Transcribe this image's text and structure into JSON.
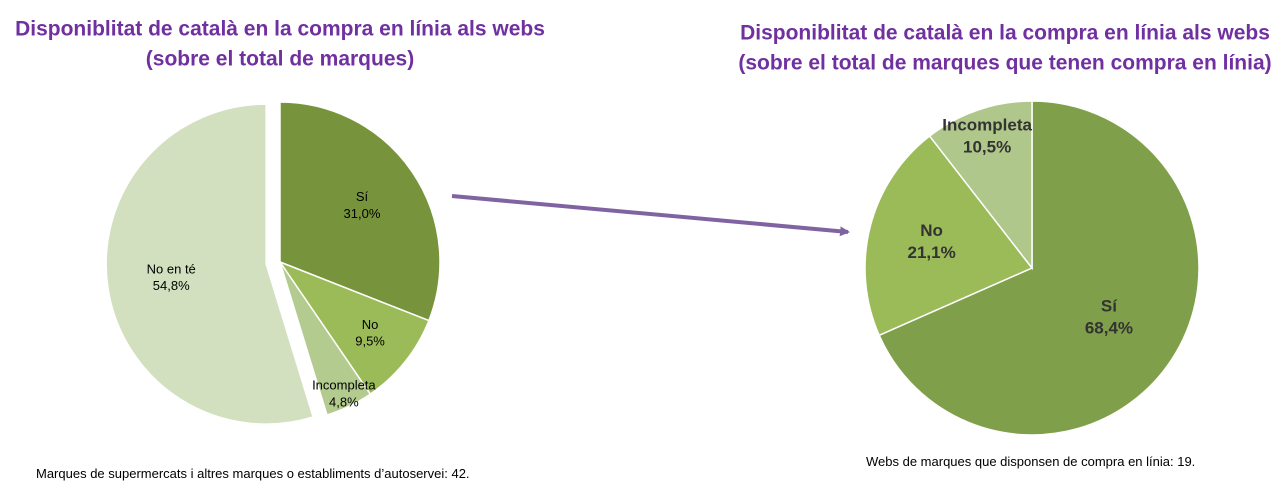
{
  "chart_data": [
    {
      "type": "pie",
      "title": [
        "Disponiblitat de català en la compra en línia als webs",
        "(sobre el total de marques)"
      ],
      "categories": [
        "Sí",
        "No",
        "Incompleta",
        "No en té"
      ],
      "values": [
        31.0,
        9.5,
        4.8,
        54.8
      ],
      "value_labels": [
        "31,0%",
        "9,5%",
        "4,8%",
        "54,8%"
      ],
      "colors": [
        "#77933c",
        "#9bbb59",
        "#b3cb8f",
        "#d2e0bf"
      ],
      "exploded": [
        false,
        false,
        false,
        true
      ],
      "note": "Marques de supermercats i altres marques o establiments d’autoservei: 42."
    },
    {
      "type": "pie",
      "title": [
        "Disponiblitat de català en la compra en línia als webs",
        "(sobre el total de marques que tenen compra en línia)"
      ],
      "categories": [
        "Sí",
        "No",
        "Incompleta"
      ],
      "values": [
        68.4,
        21.1,
        10.5
      ],
      "value_labels": [
        "68,4%",
        "21,1%",
        "10,5%"
      ],
      "colors": [
        "#7f9f4a",
        "#9bbb59",
        "#afc78a"
      ],
      "exploded": [
        false,
        false,
        false
      ],
      "note": "Webs de marques que disponsen de compra en línia: 19."
    }
  ]
}
